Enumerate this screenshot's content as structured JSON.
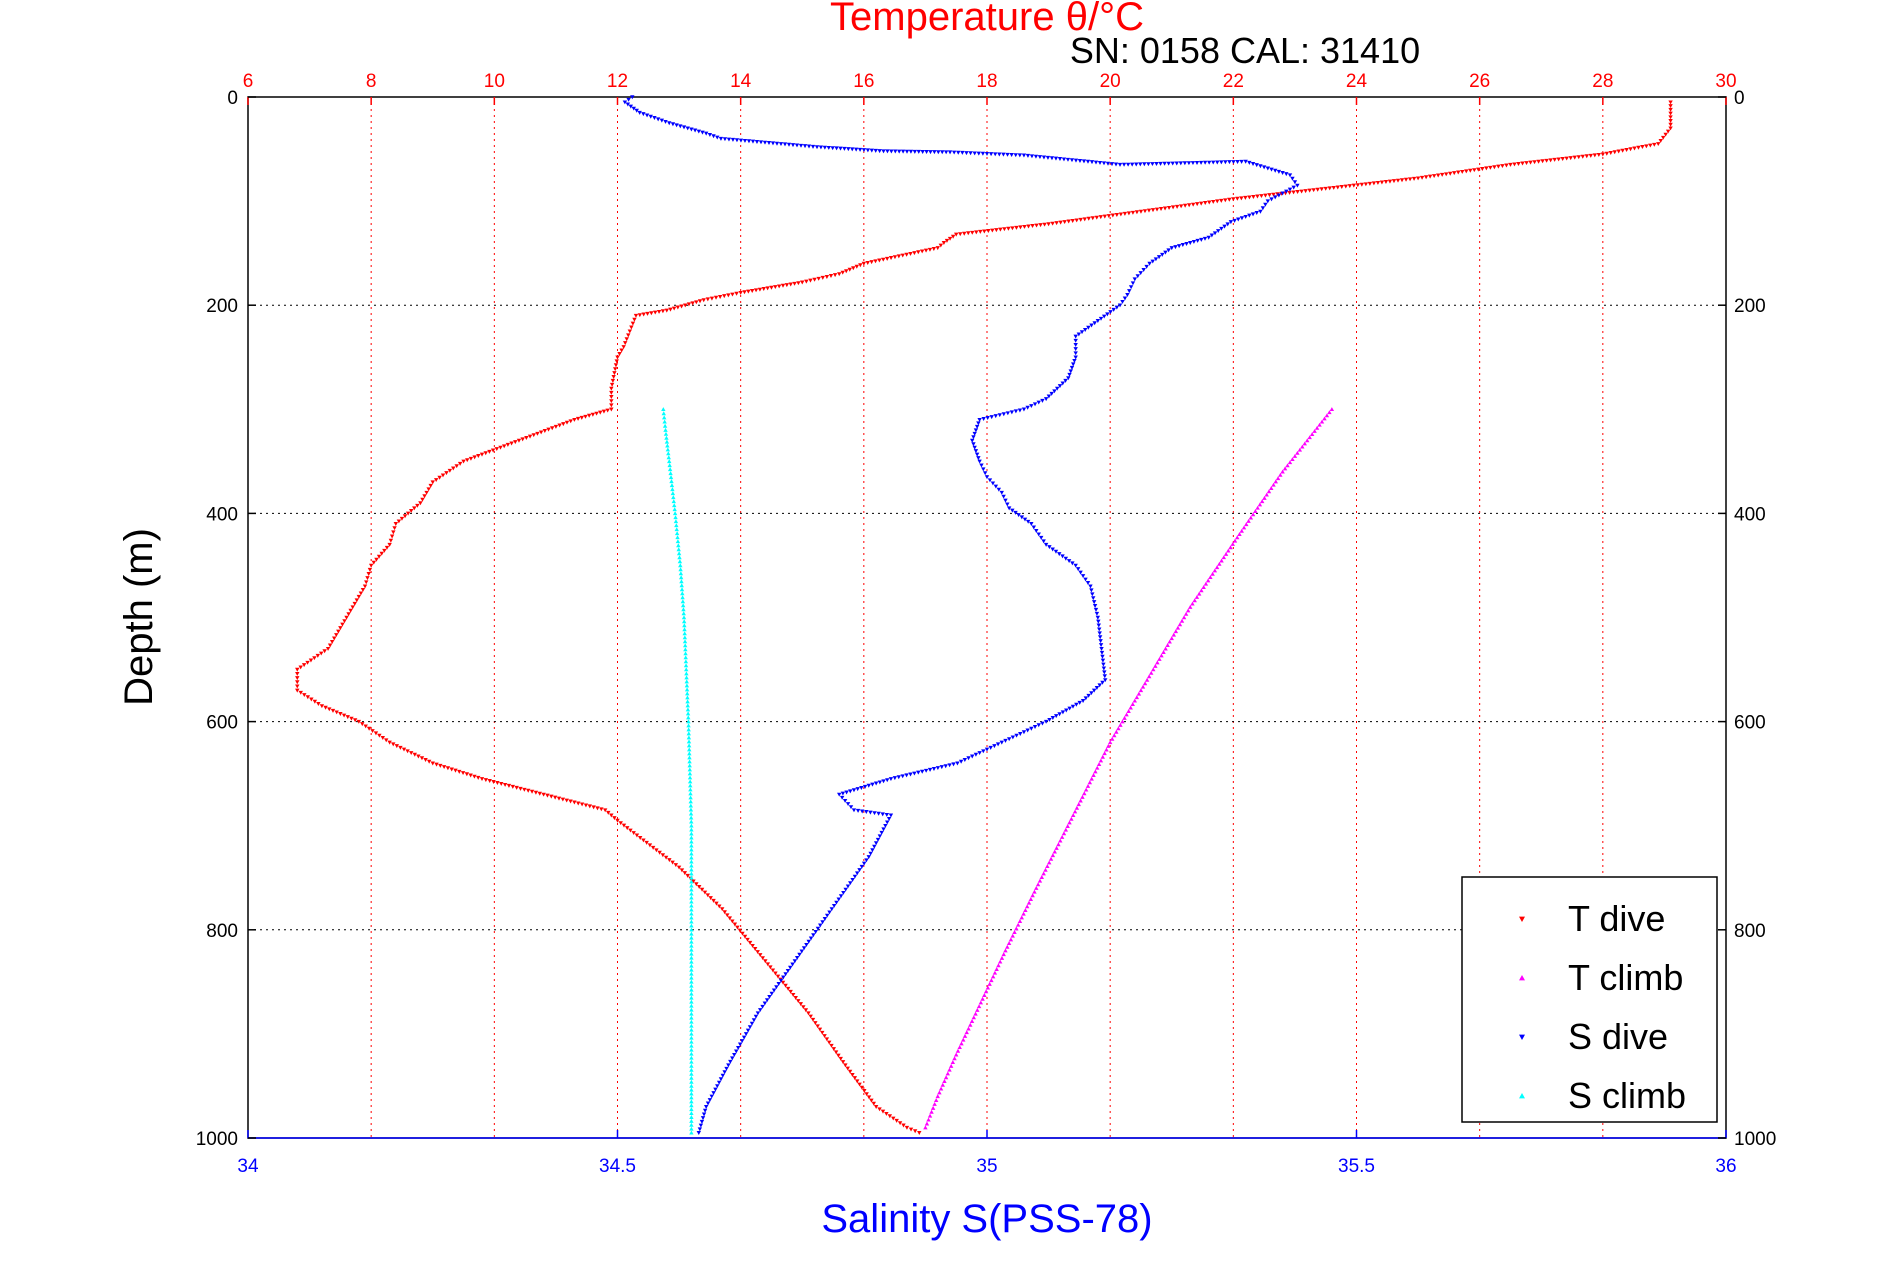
{
  "chart_data": {
    "type": "scatter",
    "title_top": "Temperature θ/°C",
    "annotation": "SN: 0158  CAL: 31410",
    "xlabel_bottom": "Salinity S(PSS-78)",
    "ylabel": "Depth (m)",
    "x_top_ticks": [
      "6",
      "8",
      "10",
      "12",
      "14",
      "16",
      "18",
      "20",
      "22",
      "24",
      "26",
      "28",
      "30"
    ],
    "x_bottom_ticks": [
      "34",
      "34.5",
      "35",
      "35.5",
      "36"
    ],
    "y_ticks": [
      "0",
      "200",
      "400",
      "600",
      "800",
      "1000"
    ],
    "x_top_lim": [
      6,
      30
    ],
    "x_bottom_lim": [
      34,
      36
    ],
    "ylim": [
      0,
      1000
    ],
    "y_reversed": true,
    "grid": true,
    "legend_position": "bottom-right",
    "colors": {
      "t_dive": "#ff0000",
      "t_climb": "#ff00ff",
      "s_dive": "#0000ff",
      "s_climb": "#00ffff",
      "top_axis": "#ff0000",
      "bottom_axis": "#0000ff"
    },
    "series": [
      {
        "name": "T dive",
        "axis": "top",
        "marker": "triangle-down",
        "points": [
          [
            29.1,
            5
          ],
          [
            29.1,
            30
          ],
          [
            28.9,
            45
          ],
          [
            28.0,
            55
          ],
          [
            26.5,
            65
          ],
          [
            25.0,
            78
          ],
          [
            23.5,
            88
          ],
          [
            22.0,
            98
          ],
          [
            20.5,
            110
          ],
          [
            19.0,
            122
          ],
          [
            17.5,
            132
          ],
          [
            17.3,
            140
          ],
          [
            17.2,
            145
          ],
          [
            16.0,
            160
          ],
          [
            15.6,
            170
          ],
          [
            15.0,
            178
          ],
          [
            14.0,
            188
          ],
          [
            13.4,
            195
          ],
          [
            12.8,
            205
          ],
          [
            12.3,
            210
          ],
          [
            12.2,
            225
          ],
          [
            12.1,
            240
          ],
          [
            12.0,
            250
          ],
          [
            11.95,
            265
          ],
          [
            11.9,
            280
          ],
          [
            11.9,
            300
          ],
          [
            11.3,
            310
          ],
          [
            10.4,
            330
          ],
          [
            9.5,
            350
          ],
          [
            9.0,
            370
          ],
          [
            8.8,
            390
          ],
          [
            8.4,
            410
          ],
          [
            8.3,
            430
          ],
          [
            8.0,
            450
          ],
          [
            7.9,
            470
          ],
          [
            7.7,
            490
          ],
          [
            7.5,
            510
          ],
          [
            7.3,
            530
          ],
          [
            6.8,
            550
          ],
          [
            6.8,
            570
          ],
          [
            7.2,
            585
          ],
          [
            7.8,
            600
          ],
          [
            8.3,
            620
          ],
          [
            9.0,
            640
          ],
          [
            9.8,
            655
          ],
          [
            10.8,
            670
          ],
          [
            11.8,
            685
          ],
          [
            12.0,
            695
          ],
          [
            13.0,
            740
          ],
          [
            13.7,
            780
          ],
          [
            14.4,
            830
          ],
          [
            15.1,
            880
          ],
          [
            15.7,
            930
          ],
          [
            16.2,
            970
          ],
          [
            16.7,
            990
          ],
          [
            16.9,
            995
          ]
        ]
      },
      {
        "name": "T climb",
        "axis": "top",
        "marker": "triangle-up",
        "points": [
          [
            17.0,
            990
          ],
          [
            17.2,
            960
          ],
          [
            17.5,
            920
          ],
          [
            17.9,
            870
          ],
          [
            18.3,
            820
          ],
          [
            18.8,
            760
          ],
          [
            19.4,
            690
          ],
          [
            20.0,
            620
          ],
          [
            20.6,
            560
          ],
          [
            21.3,
            490
          ],
          [
            22.1,
            420
          ],
          [
            22.8,
            360
          ],
          [
            23.2,
            330
          ],
          [
            23.6,
            300
          ]
        ]
      },
      {
        "name": "S dive",
        "axis": "bottom",
        "marker": "triangle-down",
        "points": [
          [
            34.52,
            0
          ],
          [
            34.51,
            5
          ],
          [
            34.53,
            15
          ],
          [
            34.57,
            25
          ],
          [
            34.62,
            35
          ],
          [
            34.64,
            40
          ],
          [
            34.77,
            48
          ],
          [
            34.86,
            52
          ],
          [
            34.95,
            53
          ],
          [
            35.05,
            56
          ],
          [
            35.18,
            65
          ],
          [
            35.35,
            62
          ],
          [
            35.41,
            75
          ],
          [
            35.42,
            85
          ],
          [
            35.38,
            100
          ],
          [
            35.37,
            110
          ],
          [
            35.33,
            120
          ],
          [
            35.3,
            135
          ],
          [
            35.25,
            145
          ],
          [
            35.22,
            160
          ],
          [
            35.2,
            175
          ],
          [
            35.19,
            190
          ],
          [
            35.18,
            200
          ],
          [
            35.15,
            215
          ],
          [
            35.12,
            230
          ],
          [
            35.12,
            250
          ],
          [
            35.11,
            270
          ],
          [
            35.08,
            290
          ],
          [
            35.05,
            300
          ],
          [
            34.99,
            310
          ],
          [
            34.98,
            330
          ],
          [
            34.99,
            350
          ],
          [
            35.0,
            365
          ],
          [
            35.02,
            380
          ],
          [
            35.03,
            395
          ],
          [
            35.06,
            410
          ],
          [
            35.08,
            430
          ],
          [
            35.12,
            450
          ],
          [
            35.14,
            470
          ],
          [
            35.15,
            500
          ],
          [
            35.155,
            530
          ],
          [
            35.16,
            560
          ],
          [
            35.13,
            580
          ],
          [
            35.08,
            600
          ],
          [
            35.02,
            620
          ],
          [
            34.96,
            640
          ],
          [
            34.87,
            655
          ],
          [
            34.8,
            670
          ],
          [
            34.82,
            685
          ],
          [
            34.87,
            690
          ],
          [
            34.84,
            730
          ],
          [
            34.79,
            780
          ],
          [
            34.74,
            830
          ],
          [
            34.69,
            880
          ],
          [
            34.65,
            930
          ],
          [
            34.62,
            970
          ],
          [
            34.61,
            995
          ]
        ]
      },
      {
        "name": "S climb",
        "axis": "bottom",
        "marker": "triangle-up",
        "points": [
          [
            34.6,
            995
          ],
          [
            34.6,
            950
          ],
          [
            34.6,
            900
          ],
          [
            34.6,
            850
          ],
          [
            34.6,
            800
          ],
          [
            34.6,
            750
          ],
          [
            34.6,
            700
          ],
          [
            34.598,
            650
          ],
          [
            34.596,
            600
          ],
          [
            34.593,
            550
          ],
          [
            34.59,
            500
          ],
          [
            34.585,
            450
          ],
          [
            34.578,
            400
          ],
          [
            34.57,
            350
          ],
          [
            34.565,
            320
          ],
          [
            34.562,
            300
          ]
        ]
      }
    ]
  }
}
